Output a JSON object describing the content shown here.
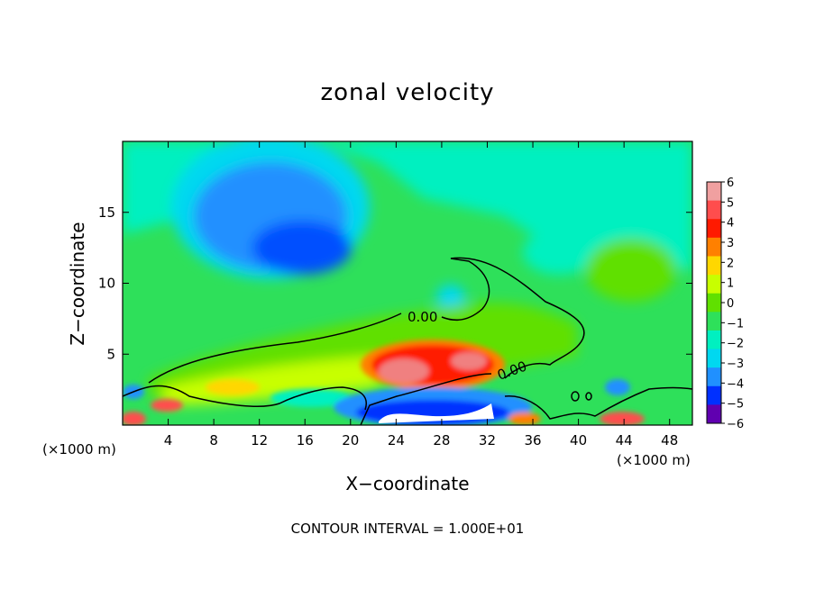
{
  "chart_data": {
    "type": "heatmap",
    "title": "zonal velocity",
    "xlabel": "X−coordinate",
    "ylabel": "Z−coordinate",
    "x_unit_left": "(×1000 m)",
    "x_unit_right": "(×1000 m)",
    "xlim": [
      0,
      50
    ],
    "ylim": [
      0,
      20
    ],
    "xticks": [
      4,
      8,
      12,
      16,
      20,
      24,
      28,
      32,
      36,
      40,
      44,
      48
    ],
    "yticks": [
      5,
      10,
      15
    ],
    "colorbar": {
      "ticks": [
        6,
        5,
        4,
        3,
        2,
        1,
        0,
        -1,
        -2,
        -3,
        -4,
        -5,
        -6
      ],
      "tick_labels": [
        "6",
        "5",
        "4",
        "3",
        "2",
        "1",
        "0",
        "−1",
        "−2",
        "−3",
        "−4",
        "−5",
        "−6"
      ],
      "colors": [
        "#f0a0a0",
        "#ff4d4d",
        "#ff1a00",
        "#ff8000",
        "#ffd700",
        "#c8ff00",
        "#60e000",
        "#2ee05a",
        "#00f0c0",
        "#00d8f0",
        "#2090ff",
        "#0030ff",
        "#6000b0"
      ]
    },
    "contour_labels": [
      "0.00",
      "0.00"
    ],
    "contour_interval_text": "CONTOUR INTERVAL = 1.000E+01",
    "features": [
      {
        "name": "upper-negative-core",
        "x": 16,
        "z": 12,
        "value": -3.5
      },
      {
        "name": "low-level-positive-jet",
        "x": 28,
        "z": 4.5,
        "value": 5
      },
      {
        "name": "surface-negative-jet",
        "x": 29,
        "z": 1.5,
        "value": -5.5
      }
    ]
  }
}
